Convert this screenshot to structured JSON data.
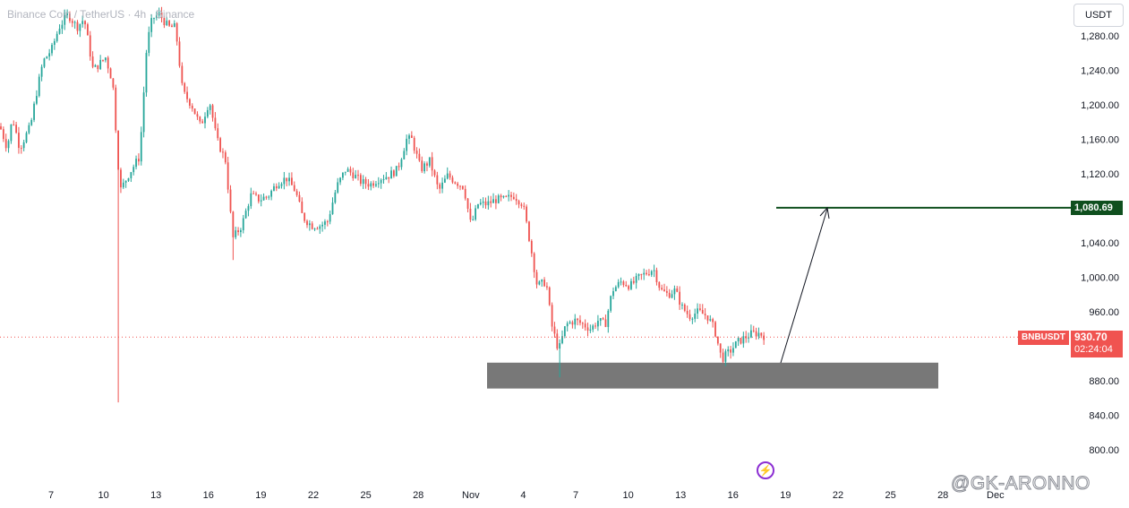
{
  "header": {
    "symbol_title": "Binance Coin / TetherUS · 4h · Binance",
    "currency": "USDT"
  },
  "tags": {
    "target_price": "1,080.69",
    "symbol": "BNBUSDT",
    "last_price": "930.70",
    "countdown": "02:24:04"
  },
  "watermark": "@GK-ARONNO",
  "colors": {
    "up": "#26a69a",
    "down": "#ef5350",
    "target_line": "#0f4f1e",
    "zone": "#787878"
  },
  "chart_data": {
    "type": "candlestick",
    "y_axis": {
      "min": 780,
      "max": 1300,
      "ticks": [
        800,
        840,
        880,
        920,
        960,
        1000,
        1040,
        1080,
        1120,
        1160,
        1200,
        1240,
        1280
      ],
      "tick_labels": [
        "800.00",
        "840.00",
        "880.00",
        "",
        "960.00",
        "1,000.00",
        "1,040.00",
        "",
        "1,120.00",
        "1,160.00",
        "1,200.00",
        "1,240.00",
        "1,280.00"
      ]
    },
    "x_axis": {
      "labels": [
        "7",
        "10",
        "13",
        "16",
        "19",
        "22",
        "25",
        "28",
        "Nov",
        "4",
        "7",
        "10",
        "13",
        "16",
        "19",
        "22",
        "25",
        "28",
        "Dec"
      ]
    },
    "candle_path": [
      [
        0,
        1175
      ],
      [
        8,
        1150
      ],
      [
        14,
        1185
      ],
      [
        22,
        1150
      ],
      [
        34,
        1175
      ],
      [
        40,
        1210
      ],
      [
        48,
        1250
      ],
      [
        58,
        1265
      ],
      [
        66,
        1290
      ],
      [
        76,
        1305
      ],
      [
        86,
        1290
      ],
      [
        94,
        1300
      ],
      [
        104,
        1240
      ],
      [
        118,
        1255
      ],
      [
        126,
        1225
      ],
      [
        134,
        1100
      ],
      [
        144,
        1120
      ],
      [
        156,
        1140
      ],
      [
        164,
        1270
      ],
      [
        170,
        1300
      ],
      [
        178,
        1305
      ],
      [
        188,
        1290
      ],
      [
        196,
        1290
      ],
      [
        204,
        1215
      ],
      [
        214,
        1200
      ],
      [
        224,
        1175
      ],
      [
        234,
        1205
      ],
      [
        242,
        1160
      ],
      [
        252,
        1135
      ],
      [
        260,
        1045
      ],
      [
        270,
        1060
      ],
      [
        280,
        1095
      ],
      [
        290,
        1090
      ],
      [
        300,
        1095
      ],
      [
        310,
        1110
      ],
      [
        320,
        1115
      ],
      [
        330,
        1100
      ],
      [
        338,
        1070
      ],
      [
        348,
        1060
      ],
      [
        358,
        1060
      ],
      [
        366,
        1065
      ],
      [
        376,
        1105
      ],
      [
        386,
        1125
      ],
      [
        394,
        1120
      ],
      [
        404,
        1110
      ],
      [
        414,
        1108
      ],
      [
        424,
        1115
      ],
      [
        434,
        1118
      ],
      [
        444,
        1125
      ],
      [
        454,
        1160
      ],
      [
        460,
        1160
      ],
      [
        470,
        1125
      ],
      [
        480,
        1135
      ],
      [
        490,
        1100
      ],
      [
        500,
        1118
      ],
      [
        510,
        1110
      ],
      [
        518,
        1105
      ],
      [
        526,
        1060
      ],
      [
        534,
        1085
      ],
      [
        544,
        1085
      ],
      [
        554,
        1090
      ],
      [
        564,
        1090
      ],
      [
        574,
        1095
      ],
      [
        584,
        1085
      ],
      [
        592,
        1040
      ],
      [
        600,
        990
      ],
      [
        610,
        995
      ],
      [
        616,
        945
      ],
      [
        624,
        915
      ],
      [
        632,
        945
      ],
      [
        642,
        950
      ],
      [
        652,
        945
      ],
      [
        660,
        940
      ],
      [
        668,
        950
      ],
      [
        676,
        945
      ],
      [
        684,
        985
      ],
      [
        694,
        995
      ],
      [
        704,
        990
      ],
      [
        714,
        1000
      ],
      [
        722,
        1005
      ],
      [
        730,
        1010
      ],
      [
        738,
        985
      ],
      [
        746,
        980
      ],
      [
        754,
        985
      ],
      [
        762,
        965
      ],
      [
        770,
        955
      ],
      [
        780,
        960
      ],
      [
        790,
        955
      ],
      [
        798,
        940
      ],
      [
        806,
        905
      ],
      [
        816,
        915
      ],
      [
        824,
        925
      ],
      [
        832,
        930
      ],
      [
        840,
        935
      ],
      [
        848,
        935
      ],
      [
        856,
        930.7
      ]
    ],
    "current_price": 930.7,
    "target_price": 1080.69,
    "support_zone": [
      871,
      901
    ]
  }
}
